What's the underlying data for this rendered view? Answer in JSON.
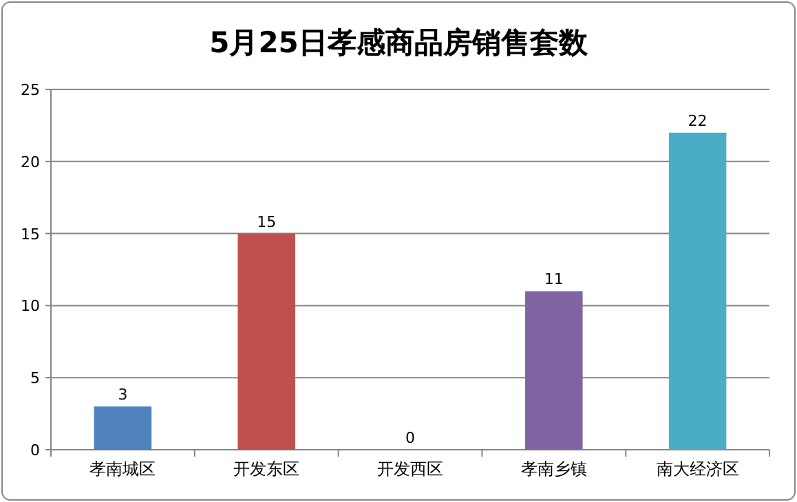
{
  "chart_data": {
    "type": "bar",
    "title": "5月25日孝感商品房销售套数",
    "categories": [
      "孝南城区",
      "开发东区",
      "开发西区",
      "孝南乡镇",
      "南大经济区"
    ],
    "values": [
      3,
      15,
      0,
      11,
      22
    ],
    "colors": [
      "#4f81bd",
      "#c0504d",
      "#9bbb59",
      "#8064a2",
      "#4bacc6"
    ],
    "ylim": [
      0,
      25
    ],
    "yticks": [
      0,
      5,
      10,
      15,
      20,
      25
    ],
    "grid": "y",
    "data_labels": true
  }
}
